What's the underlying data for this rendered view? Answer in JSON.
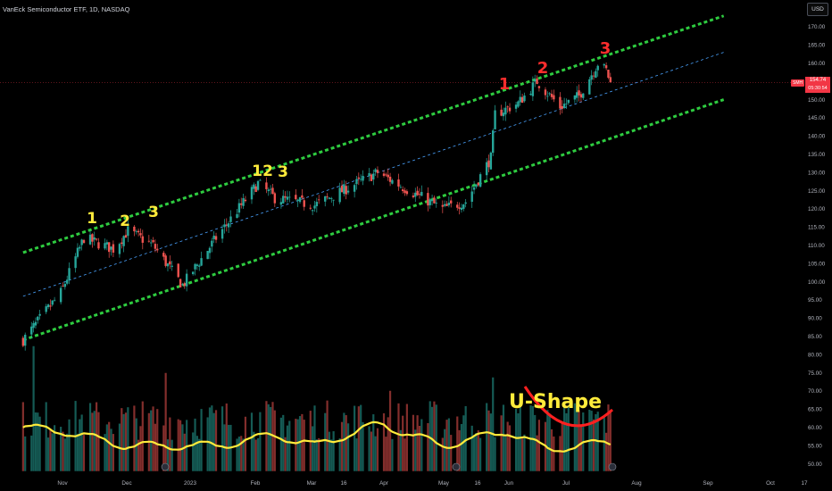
{
  "header": {
    "title": "VanEck Semiconductor ETF, 1D, NASDAQ",
    "currency": "USD"
  },
  "price_tag": {
    "symbol": "SMH",
    "price": "154.74",
    "time": "05:30:54"
  },
  "colors": {
    "background": "#000000",
    "up": "#26a69a",
    "down": "#ef5350",
    "channel": "#2ecc40",
    "midline": "#4aa3ff",
    "volume_ma": "#ffeb3b",
    "wave_yellow": "#ffeb3b",
    "wave_red": "#ff2d2d",
    "u_shape": "#ff2020",
    "price_line": "#f23645"
  },
  "chart_data": {
    "type": "candlestick",
    "title": "VanEck Semiconductor ETF, 1D, NASDAQ",
    "x_ticks": [
      "Nov",
      "Dec",
      "2023",
      "Feb",
      "Mar",
      "16",
      "Apr",
      "May",
      "16",
      "Jun",
      "Jul",
      "Aug",
      "Sep",
      "Oct",
      "17"
    ],
    "price_ticks": [
      50.0,
      55.0,
      60.0,
      65.0,
      70.0,
      75.0,
      80.0,
      85.0,
      90.0,
      95.0,
      100.0,
      105.0,
      110.0,
      115.0,
      120.0,
      125.0,
      130.0,
      135.0,
      140.0,
      145.0,
      150.0,
      155.0,
      160.0,
      165.0,
      170.0
    ],
    "last_price": 154.74,
    "price_anchors": [
      {
        "date": "2022-10-13",
        "close": 84
      },
      {
        "date": "2022-10-31",
        "close": 97
      },
      {
        "date": "2022-11-11",
        "close": 112
      },
      {
        "date": "2022-11-25",
        "close": 109
      },
      {
        "date": "2022-12-02",
        "close": 114
      },
      {
        "date": "2022-12-14",
        "close": 110
      },
      {
        "date": "2022-12-28",
        "close": 99
      },
      {
        "date": "2023-01-13",
        "close": 112
      },
      {
        "date": "2023-02-02",
        "close": 127
      },
      {
        "date": "2023-02-10",
        "close": 123
      },
      {
        "date": "2023-03-01",
        "close": 121
      },
      {
        "date": "2023-03-31",
        "close": 130
      },
      {
        "date": "2023-04-12",
        "close": 126
      },
      {
        "date": "2023-05-01",
        "close": 120
      },
      {
        "date": "2023-05-12",
        "close": 122
      },
      {
        "date": "2023-05-18",
        "close": 128
      },
      {
        "date": "2023-05-24",
        "close": 134
      },
      {
        "date": "2023-05-26",
        "close": 146
      },
      {
        "date": "2023-06-06",
        "close": 149
      },
      {
        "date": "2023-06-15",
        "close": 155
      },
      {
        "date": "2023-06-26",
        "close": 148
      },
      {
        "date": "2023-07-05",
        "close": 151
      },
      {
        "date": "2023-07-14",
        "close": 160
      },
      {
        "date": "2023-07-18",
        "close": 158
      },
      {
        "date": "2023-07-20",
        "close": 154.74
      }
    ],
    "volume_ma_level": [
      {
        "date": "2022-10-13",
        "value": 60
      },
      {
        "date": "2022-11-01",
        "value": 59
      },
      {
        "date": "2022-12-01",
        "value": 55
      },
      {
        "date": "2023-01-15",
        "value": 55
      },
      {
        "date": "2023-02-10",
        "value": 58
      },
      {
        "date": "2023-03-01",
        "value": 55
      },
      {
        "date": "2023-04-01",
        "value": 61
      },
      {
        "date": "2023-05-01",
        "value": 55
      },
      {
        "date": "2023-06-01",
        "value": 59
      },
      {
        "date": "2023-06-20",
        "value": 54
      },
      {
        "date": "2023-07-20",
        "value": 56
      }
    ],
    "channel": {
      "upper": [
        {
          "date": "2022-10-13",
          "value": 108
        },
        {
          "date": "2023-09-12",
          "value": 173
        }
      ],
      "middle": [
        {
          "date": "2022-10-13",
          "value": 96
        },
        {
          "date": "2023-09-12",
          "value": 163
        }
      ],
      "lower": [
        {
          "date": "2022-10-13",
          "value": 84
        },
        {
          "date": "2023-09-12",
          "value": 150
        }
      ]
    },
    "annotations": [
      {
        "text": "1",
        "color": "yellow"
      },
      {
        "text": "2",
        "color": "yellow"
      },
      {
        "text": "3",
        "color": "yellow"
      },
      {
        "text": "1",
        "color": "yellow"
      },
      {
        "text": "2",
        "color": "yellow"
      },
      {
        "text": "3",
        "color": "yellow"
      },
      {
        "text": "1",
        "color": "red"
      },
      {
        "text": "2",
        "color": "red"
      },
      {
        "text": "3",
        "color": "red"
      },
      {
        "text": "U-Shape",
        "color": "yellow"
      }
    ]
  }
}
